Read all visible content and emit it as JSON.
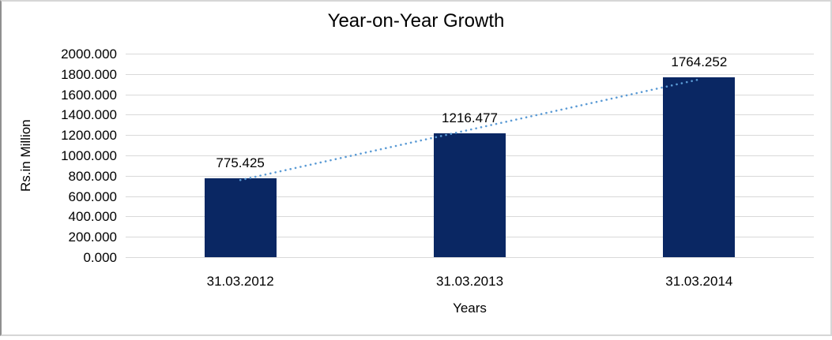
{
  "chart_data": {
    "type": "bar",
    "title": "Year-on-Year Growth",
    "xlabel": "Years",
    "ylabel": "Rs.in Million",
    "categories": [
      "31.03.2012",
      "31.03.2013",
      "31.03.2014"
    ],
    "values": [
      775.425,
      1216.477,
      1764.252
    ],
    "value_labels": [
      "775.425",
      "1216.477",
      "1764.252"
    ],
    "y_ticks": [
      "2000.000",
      "1800.000",
      "1600.000",
      "1400.000",
      "1200.000",
      "1000.000",
      "800.000",
      "600.000",
      "400.000",
      "200.000",
      "0.000"
    ],
    "ylim": [
      0,
      2000
    ],
    "grid": "horizontal",
    "legend": "none",
    "trendline": {
      "type": "linear",
      "style": "dotted"
    },
    "colors": {
      "bar": "#0a2763",
      "trendline": "#5b9bd5",
      "gridline": "#d9d9d9",
      "text": "#000000",
      "frame_border": "#d6d6d6"
    }
  }
}
